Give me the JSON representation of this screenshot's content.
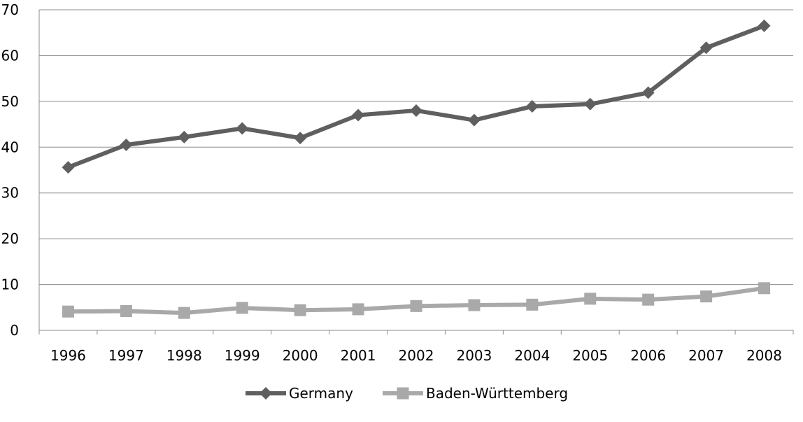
{
  "chart_data": {
    "type": "line",
    "title": "",
    "xlabel": "",
    "ylabel": "",
    "categories": [
      "1996",
      "1997",
      "1998",
      "1999",
      "2000",
      "2001",
      "2002",
      "2003",
      "2004",
      "2005",
      "2006",
      "2007",
      "2008"
    ],
    "ylim": [
      0,
      70
    ],
    "yticks": [
      0,
      10,
      20,
      30,
      40,
      50,
      60,
      70
    ],
    "grid": "horizontal",
    "legend_position": "bottom",
    "series": [
      {
        "name": "Germany",
        "marker": "diamond",
        "color": "#5f5f5f",
        "values": [
          35.6,
          40.5,
          42.2,
          44.1,
          42.0,
          47.0,
          48.0,
          45.9,
          48.9,
          49.4,
          51.9,
          61.7,
          66.5
        ]
      },
      {
        "name": "Baden-Württemberg",
        "marker": "square",
        "color": "#a9a9a9",
        "values": [
          4.1,
          4.2,
          3.8,
          4.9,
          4.4,
          4.6,
          5.3,
          5.5,
          5.6,
          6.9,
          6.7,
          7.4,
          9.2
        ]
      }
    ]
  }
}
